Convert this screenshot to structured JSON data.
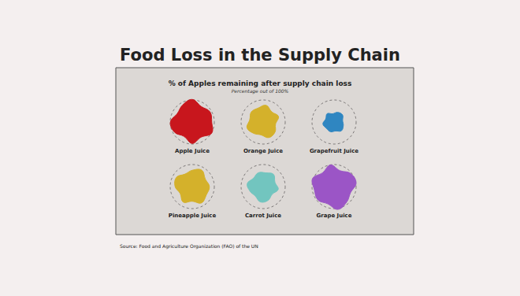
{
  "chart_data": {
    "type": "pictorial",
    "heading": "Food Loss in the Supply Chain",
    "title": "% of Apples remaining after supply chain loss",
    "subtitle": "Percentage out of 100%",
    "categories": [
      "Apple Juice",
      "Orange Juice",
      "Grapefruit Juice",
      "Pineapple Juice",
      "Carrot Juice",
      "Grape Juice"
    ],
    "values": [
      78,
      45,
      20,
      55,
      40,
      82
    ],
    "colors": [
      "#c8161d",
      "#d4b12b",
      "#2f86c1",
      "#d4b12b",
      "#72c5bf",
      "#9b55c6"
    ],
    "tick_labels": false,
    "source": "Source: Food and Agriculture Organization (FAO) of the UN"
  }
}
